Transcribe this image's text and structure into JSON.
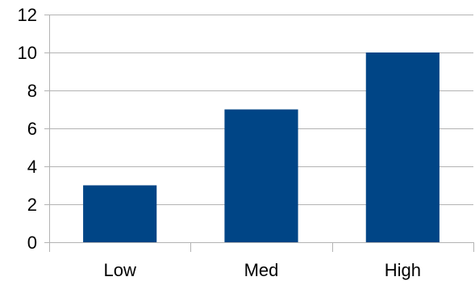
{
  "chart_data": {
    "type": "bar",
    "categories": [
      "Low",
      "Med",
      "High"
    ],
    "values": [
      3,
      7,
      10
    ],
    "title": "",
    "xlabel": "",
    "ylabel": "",
    "ylim": [
      0,
      12
    ],
    "yticks": [
      0,
      2,
      4,
      6,
      8,
      10,
      12
    ],
    "grid": true,
    "legend": "none",
    "colors": {
      "bar": "#004586",
      "grid": "#b3b3b3",
      "axis": "#b3b3b3",
      "text": "#000000"
    }
  }
}
